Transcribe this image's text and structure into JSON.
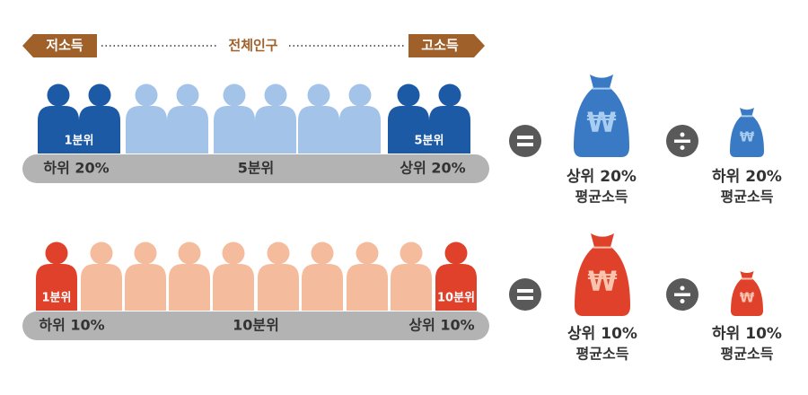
{
  "header": {
    "low": "저소득",
    "middle": "전체인구",
    "high": "고소득"
  },
  "rows": [
    {
      "first_group": "1분위",
      "last_group": "5분위",
      "bar": {
        "left": "하위 20%",
        "center": "5분위",
        "right": "상위 20%"
      },
      "numerator": {
        "symbol": "₩",
        "line1": "상위 20%",
        "line2": "평균소득"
      },
      "denominator": {
        "symbol": "₩",
        "line1": "하위 20%",
        "line2": "평균소득"
      }
    },
    {
      "first_group": "1분위",
      "last_group": "10분위",
      "bar": {
        "left": "하위 10%",
        "center": "10분위",
        "right": "상위 10%"
      },
      "numerator": {
        "symbol": "₩",
        "line1": "상위 10%",
        "line2": "평균소득"
      },
      "denominator": {
        "symbol": "₩",
        "line1": "하위 10%",
        "line2": "평균소득"
      }
    }
  ]
}
